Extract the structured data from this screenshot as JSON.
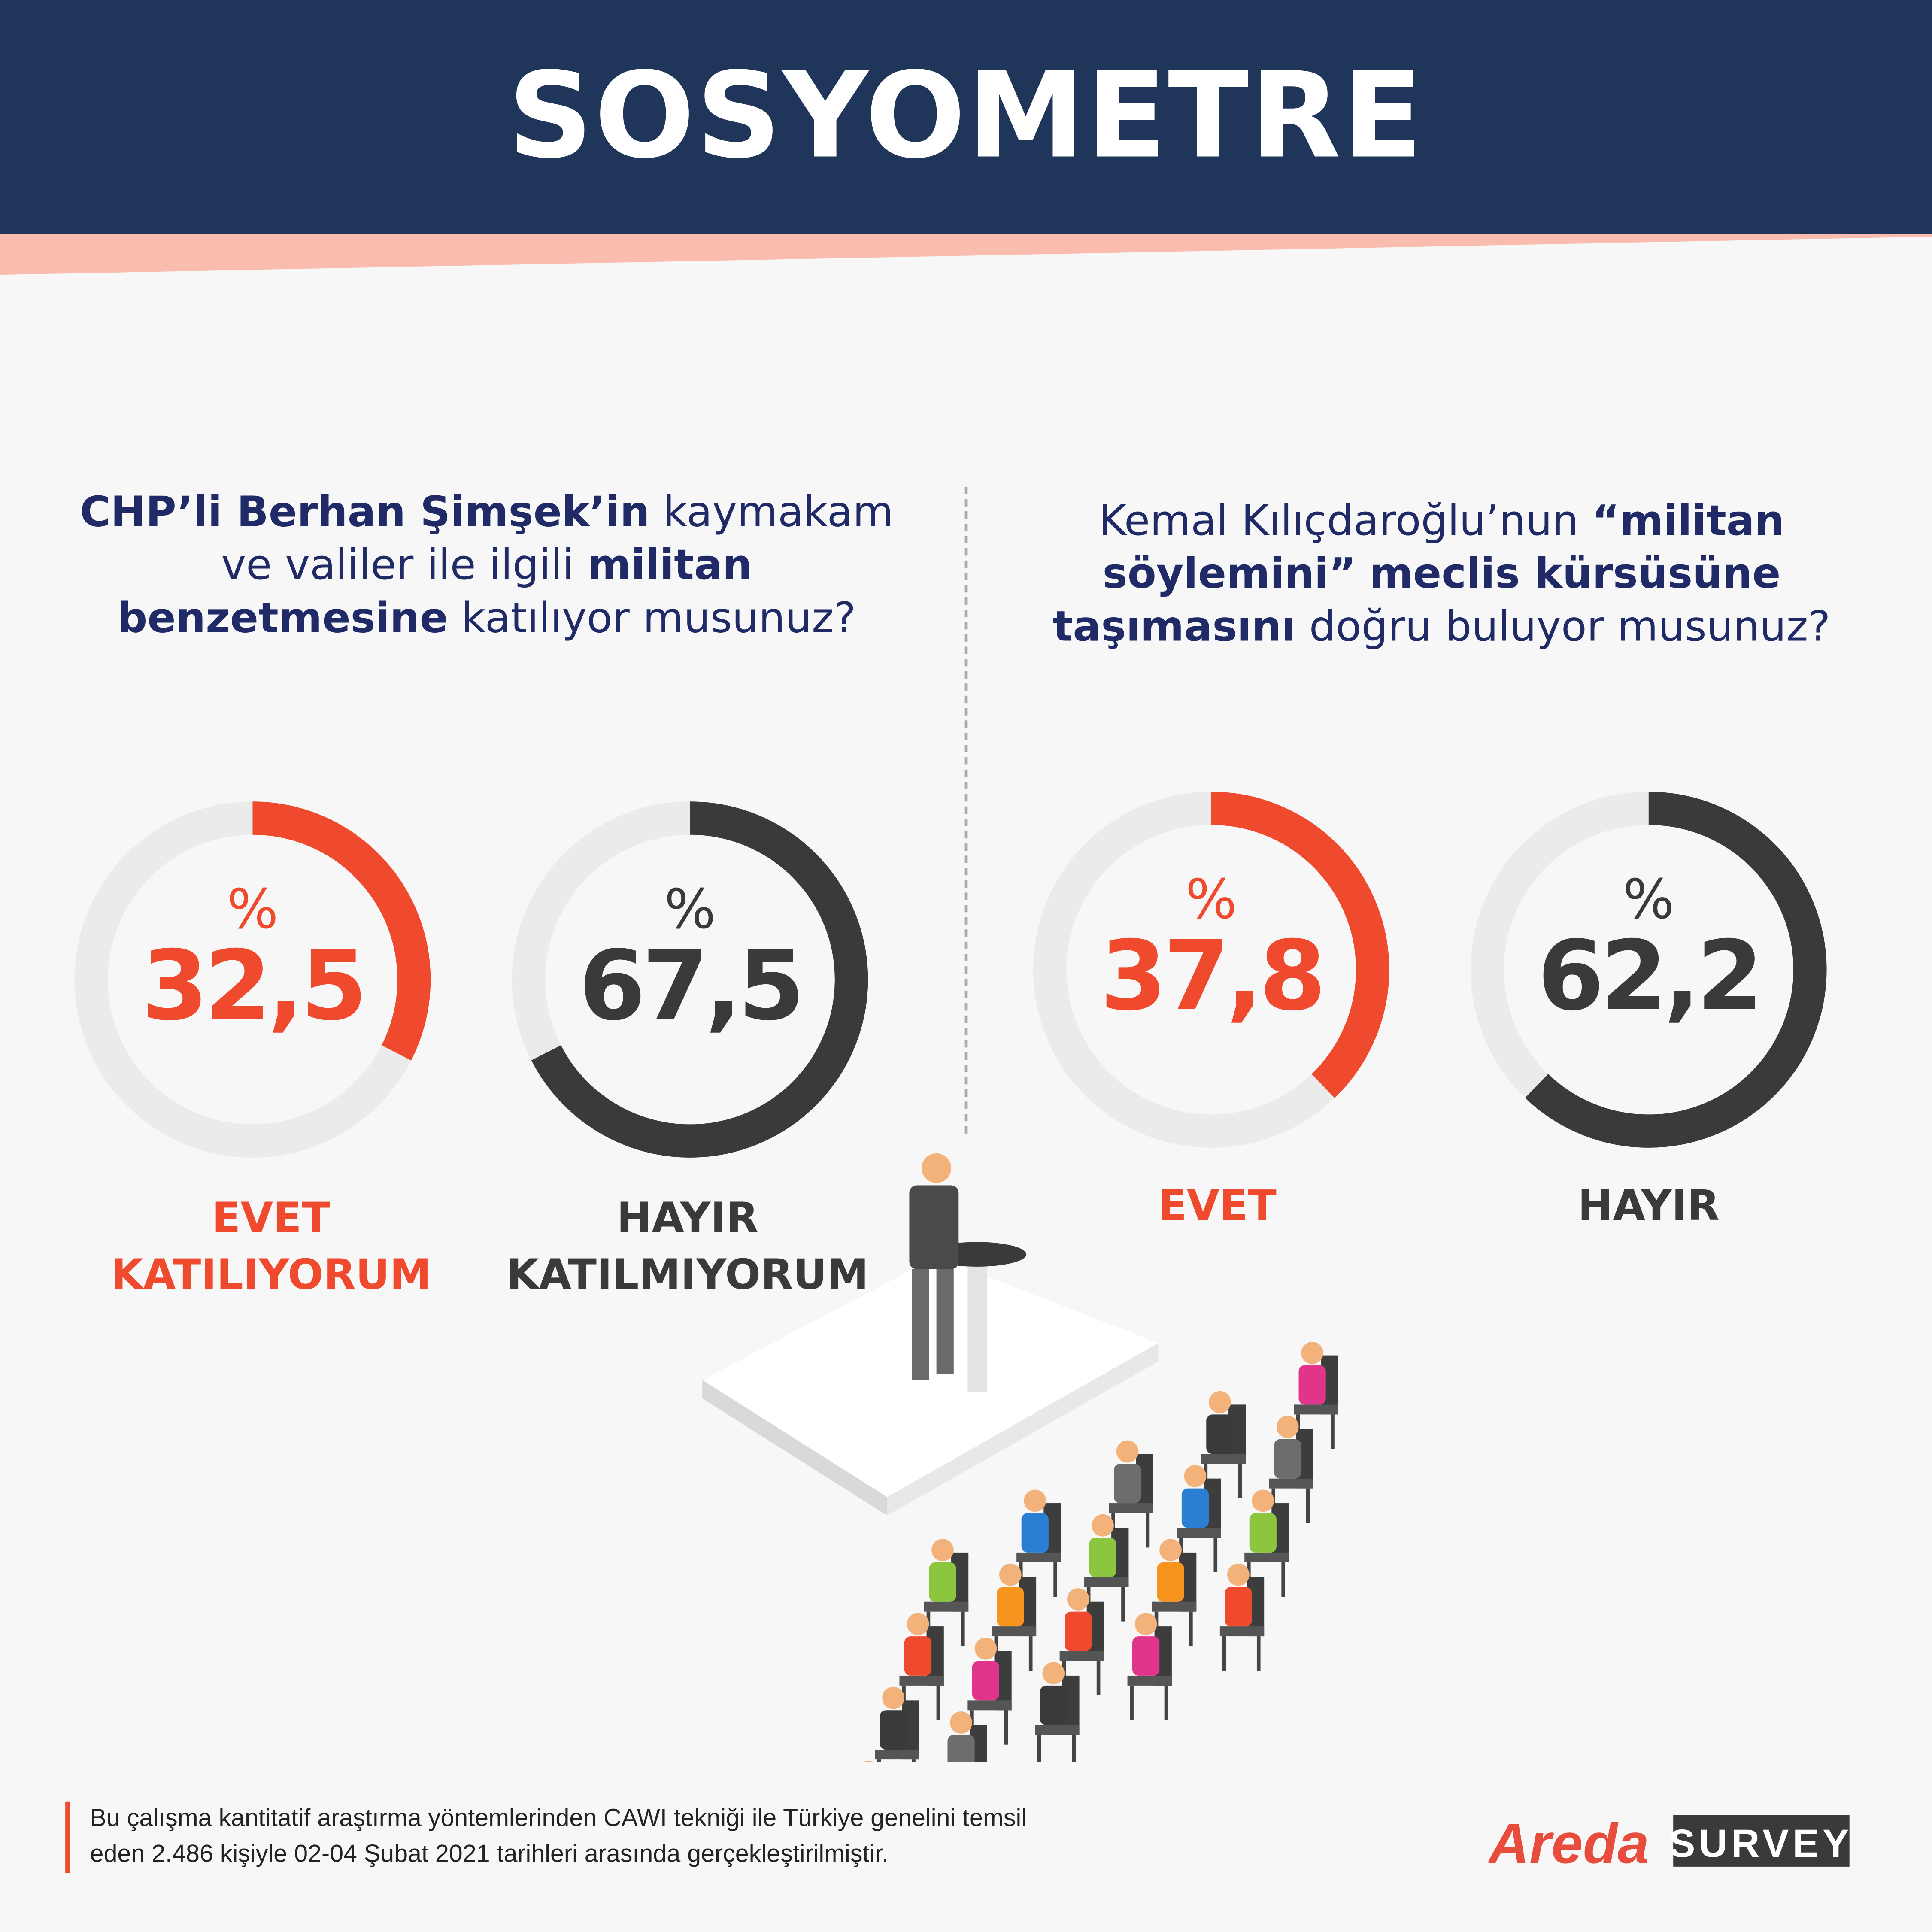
{
  "header": {
    "title": "SOSYOMETRE"
  },
  "colors": {
    "navy": "#1f355a",
    "accent": "#f04a2e",
    "dark": "#3a3a3a",
    "track": "#ebebeb",
    "strip": "#f9bcae"
  },
  "questions": [
    {
      "parts": [
        {
          "text": "CHP’li Berhan Şimşek’in",
          "bold": true
        },
        {
          "text": " kaymakam ve valiler ile ilgili ",
          "bold": false
        },
        {
          "text": "militan benzetmesine",
          "bold": true
        },
        {
          "text": " katılıyor musunuz?",
          "bold": false
        }
      ],
      "answers": [
        {
          "label_line1": "EVET",
          "label_line2": "KATILIYORUM",
          "percent_sign": "%",
          "value": "32,5",
          "fraction": 0.325,
          "color": "accent"
        },
        {
          "label_line1": "HAYIR",
          "label_line2": "KATILMIYORUM",
          "percent_sign": "%",
          "value": "67,5",
          "fraction": 0.675,
          "color": "dark"
        }
      ]
    },
    {
      "parts": [
        {
          "text": "Kemal Kılıçdaroğlu’nun ",
          "bold": false
        },
        {
          "text": "“militan söylemini”",
          "bold": true
        },
        {
          "text": " ",
          "bold": false
        },
        {
          "text": "meclis kürsüsüne taşımasını",
          "bold": true
        },
        {
          "text": " doğru buluyor musunuz?",
          "bold": false
        }
      ],
      "answers": [
        {
          "label_line1": "EVET",
          "label_line2": "",
          "percent_sign": "%",
          "value": "37,8",
          "fraction": 0.378,
          "color": "accent"
        },
        {
          "label_line1": "HAYIR",
          "label_line2": "",
          "percent_sign": "%",
          "value": "62,2",
          "fraction": 0.622,
          "color": "dark"
        }
      ]
    }
  ],
  "footer": {
    "line1": "Bu çalışma kantitatif araştırma yöntemlerinden CAWI tekniği ile Türkiye genelini temsil",
    "line2": "eden 2.486 kişiyle 02-04 Şubat 2021 tarihleri arasında gerçekleştirilmiştir."
  },
  "logo": {
    "brand": "Areda",
    "product": "SURVEY"
  }
}
